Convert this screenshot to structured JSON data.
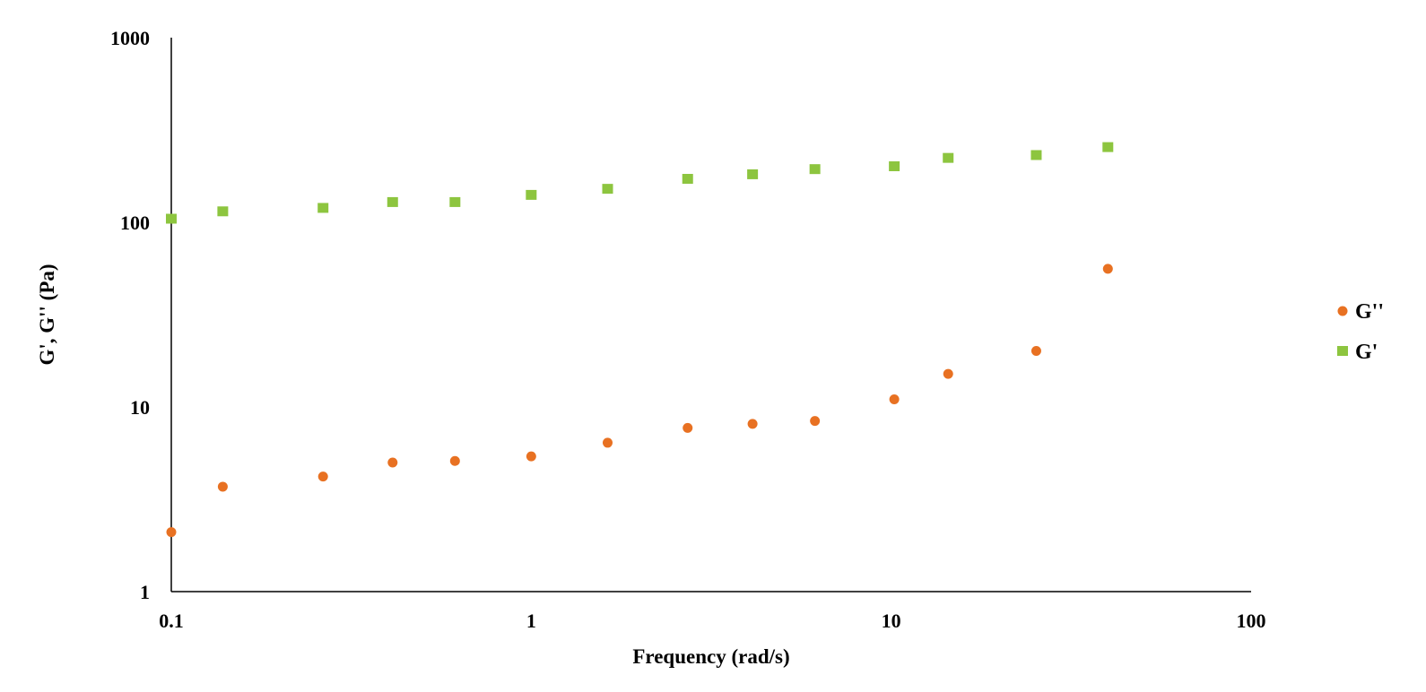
{
  "chart_data": {
    "type": "scatter",
    "title": "",
    "xlabel": "Frequency (rad/s)",
    "ylabel": "G', G'' (Pa)",
    "x_scale": "log",
    "y_scale": "log",
    "xlim": [
      0.1,
      100
    ],
    "ylim": [
      1,
      1000
    ],
    "x_ticks": [
      "0.1",
      "1",
      "10",
      "100"
    ],
    "y_ticks": [
      "1",
      "10",
      "100",
      "1000"
    ],
    "x_tick_values": [
      0.1,
      1,
      10,
      100
    ],
    "y_tick_values": [
      1,
      10,
      100,
      1000
    ],
    "grid": false,
    "legend_position": "right",
    "series": [
      {
        "name": "G''",
        "marker": "circle",
        "color": "#E87122",
        "x": [
          0.1,
          0.139,
          0.264,
          0.412,
          0.614,
          1.0,
          1.63,
          2.72,
          4.12,
          6.14,
          10.2,
          14.4,
          25.3,
          40.0
        ],
        "y": [
          2.1,
          3.7,
          4.2,
          5.0,
          5.1,
          5.4,
          6.4,
          7.7,
          8.1,
          8.4,
          11.0,
          15.1,
          20.1,
          56.0
        ]
      },
      {
        "name": "G'",
        "marker": "square",
        "color": "#8DC53F",
        "x": [
          0.1,
          0.139,
          0.264,
          0.412,
          0.614,
          1.0,
          1.63,
          2.72,
          4.12,
          6.14,
          10.2,
          14.4,
          25.3,
          40.0
        ],
        "y": [
          104,
          114,
          119,
          128,
          128,
          140,
          151,
          171,
          181,
          193,
          200,
          222,
          230,
          254
        ]
      }
    ]
  }
}
